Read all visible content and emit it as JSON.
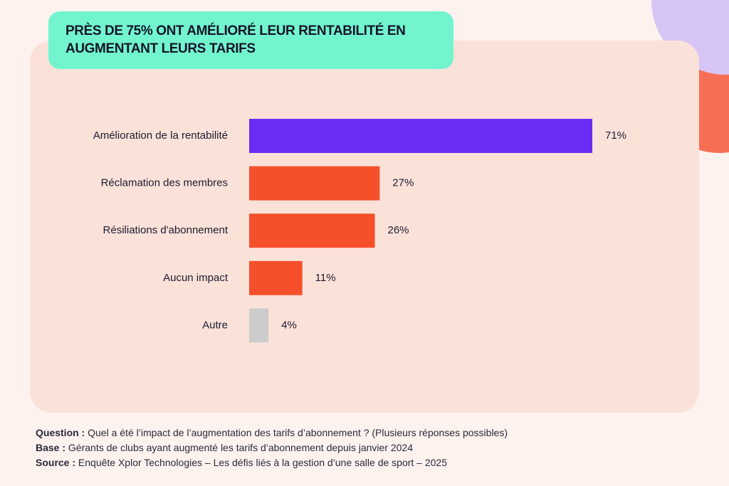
{
  "chart_data": {
    "type": "bar",
    "orientation": "horizontal",
    "title": "PRÈS DE 75% ONT AMÉLIORÉ LEUR RENTABILITÉ EN AUGMENTANT LEURS TARIFS",
    "categories": [
      "Amélioration de la rentabilité",
      "Réclamation des membres",
      "Résiliations d'abonnement",
      "Aucun impact",
      "Autre"
    ],
    "values": [
      71,
      27,
      26,
      11,
      4
    ],
    "value_labels": [
      "71%",
      "27%",
      "26%",
      "11%",
      "4%"
    ],
    "colors": [
      "#6b2cf5",
      "#f5502b",
      "#f5502b",
      "#f5502b",
      "#cccccc"
    ],
    "notes": [
      {
        "label": "Question :",
        "text": "Quel a été l’impact de l’augmentation des tarifs d’abonnement ? (Plusieurs réponses possibles)"
      },
      {
        "label": "Base :",
        "text": "Gérants de clubs ayant augmenté les tarifs d’abonnement depuis janvier 2024"
      },
      {
        "label": "Source :",
        "text": "Enquête Xplor Technologies – Les défis liés à la gestion d’une salle de sport – 2025"
      }
    ]
  }
}
